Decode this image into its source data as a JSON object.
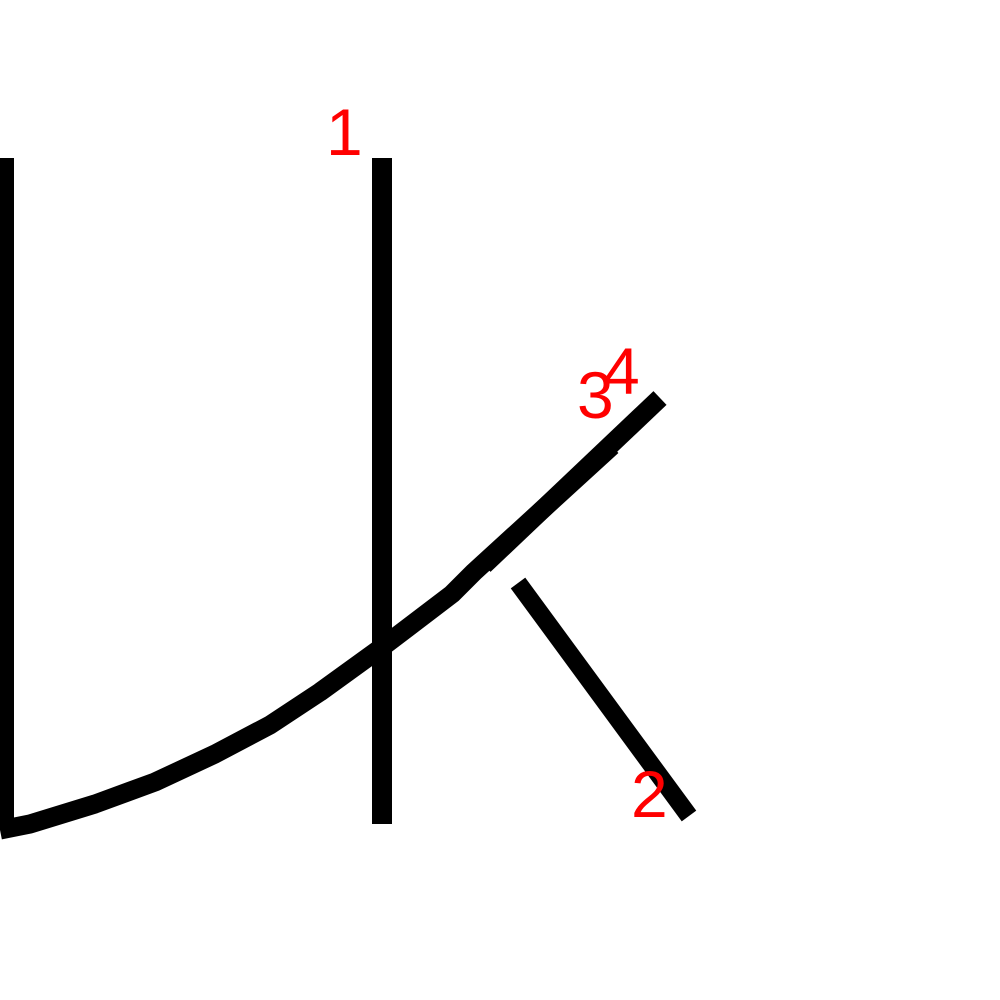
{
  "colors": {
    "background": "#ffffff",
    "stroke": "#000000",
    "label": "#ff0000"
  },
  "strokes": [
    {
      "name": "left-vertical-stroke",
      "label": ""
    },
    {
      "name": "stroke-1",
      "label": "1"
    },
    {
      "name": "stroke-2",
      "label": "2"
    },
    {
      "name": "stroke-3",
      "label": "3"
    },
    {
      "name": "stroke-4",
      "label": "4"
    }
  ]
}
